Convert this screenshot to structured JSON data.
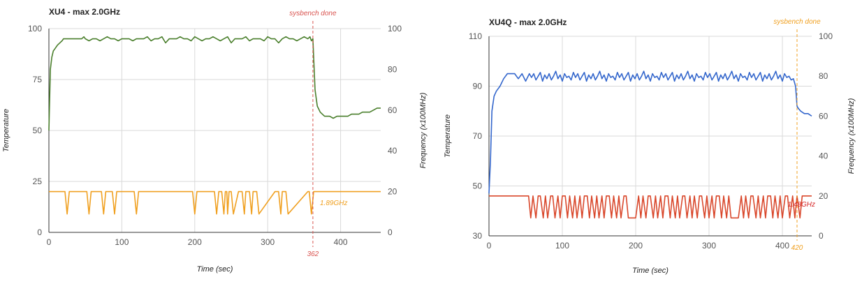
{
  "chart_data": [
    {
      "type": "line",
      "title": "XU4 - max 2.0GHz",
      "xlabel": "Time (sec)",
      "ylabel": "Temperature",
      "y2label": "Frequency (x100MHz)",
      "xlim": [
        0,
        455
      ],
      "ylim": [
        0,
        100
      ],
      "y2lim": [
        0,
        100
      ],
      "xticks": [
        0,
        100,
        200,
        300,
        400
      ],
      "yticks": [
        0,
        25,
        50,
        75,
        100
      ],
      "y2ticks": [
        0,
        20,
        40,
        60,
        80,
        100
      ],
      "grid": true,
      "marker": {
        "x": 362,
        "label": "sysbench done",
        "value_label": "362",
        "color": "#d9534f"
      },
      "freq_label": {
        "text": "1.89GHz",
        "color": "#f0a020"
      },
      "series": [
        {
          "axis": "left",
          "color": "#4a7f2c",
          "x": [
            0,
            2,
            4,
            6,
            8,
            10,
            12,
            15,
            18,
            20,
            25,
            30,
            40,
            45,
            48,
            50,
            55,
            60,
            65,
            70,
            75,
            80,
            85,
            90,
            95,
            100,
            105,
            110,
            115,
            120,
            125,
            130,
            135,
            140,
            145,
            150,
            155,
            160,
            165,
            170,
            175,
            180,
            185,
            190,
            195,
            200,
            205,
            210,
            215,
            220,
            225,
            230,
            235,
            240,
            245,
            250,
            255,
            260,
            265,
            270,
            275,
            280,
            285,
            290,
            295,
            300,
            305,
            310,
            315,
            320,
            325,
            330,
            335,
            340,
            345,
            350,
            355,
            358,
            360,
            362,
            365,
            368,
            372,
            378,
            385,
            390,
            395,
            400,
            405,
            410,
            415,
            420,
            425,
            430,
            435,
            440,
            445,
            450,
            455
          ],
          "values": [
            50,
            80,
            86,
            89,
            90,
            91,
            92,
            93,
            94,
            95,
            95,
            95,
            95,
            95,
            96,
            95,
            94,
            95,
            95,
            94,
            95,
            96,
            95,
            95,
            94,
            95,
            95,
            95,
            94,
            95,
            95,
            95,
            96,
            94,
            95,
            95,
            96,
            93,
            95,
            95,
            95,
            96,
            95,
            95,
            94,
            96,
            95,
            94,
            95,
            95,
            96,
            95,
            94,
            95,
            96,
            93,
            95,
            95,
            95,
            96,
            94,
            95,
            95,
            95,
            94,
            96,
            95,
            95,
            93,
            95,
            96,
            95,
            95,
            94,
            95,
            96,
            95,
            96,
            94,
            95,
            70,
            62,
            59,
            57,
            57,
            56,
            57,
            57,
            57,
            57,
            58,
            58,
            58,
            59,
            59,
            59,
            60,
            61,
            61
          ]
        },
        {
          "axis": "right",
          "color": "#f0a020",
          "x": [
            0,
            20,
            22,
            25,
            28,
            50,
            52,
            55,
            58,
            70,
            72,
            75,
            78,
            85,
            87,
            90,
            93,
            115,
            117,
            120,
            123,
            195,
            197,
            200,
            203,
            225,
            227,
            230,
            233,
            235,
            237,
            240,
            242,
            244,
            245,
            247,
            250,
            253,
            260,
            262,
            265,
            268,
            270,
            272,
            275,
            278,
            280,
            282,
            285,
            288,
            310,
            312,
            315,
            318,
            320,
            322,
            325,
            328,
            355,
            357,
            360,
            363,
            455
          ],
          "values": [
            20,
            20,
            20,
            9,
            20,
            20,
            20,
            9,
            20,
            20,
            20,
            9,
            20,
            20,
            20,
            9,
            20,
            20,
            20,
            9,
            20,
            20,
            20,
            9,
            20,
            20,
            20,
            9,
            20,
            20,
            20,
            9,
            20,
            20,
            9,
            20,
            20,
            9,
            20,
            20,
            20,
            9,
            20,
            20,
            20,
            9,
            20,
            20,
            20,
            9,
            20,
            20,
            20,
            9,
            20,
            20,
            20,
            9,
            20,
            20,
            9,
            20,
            20
          ]
        }
      ]
    },
    {
      "type": "line",
      "title": "XU4Q - max 2.0GHz",
      "xlabel": "Time (sec)",
      "ylabel": "Temperature",
      "y2label": "Frequency (x100MHz)",
      "xlim": [
        0,
        440
      ],
      "ylim": [
        30,
        110
      ],
      "y2lim": [
        0,
        100
      ],
      "xticks": [
        0,
        100,
        200,
        300,
        400
      ],
      "yticks": [
        30,
        50,
        70,
        90,
        110
      ],
      "y2ticks": [
        0,
        20,
        40,
        60,
        80,
        100
      ],
      "grid": true,
      "marker": {
        "x": 420,
        "label": "sysbench done",
        "value_label": "420",
        "color": "#f0a020"
      },
      "freq_label": {
        "text": "1.48GHz",
        "color": "#d62728"
      },
      "series": [
        {
          "axis": "left",
          "color": "#3366cc",
          "pattern": [
            93.5,
            95,
            92.5,
            94,
            95.5,
            92,
            94.5,
            93,
            95,
            92.5,
            94,
            96,
            93,
            94.5,
            92,
            95,
            93.5,
            94,
            92.5,
            95.5
          ],
          "x": [
            0,
            2,
            4,
            7,
            10,
            15,
            20,
            25,
            30,
            35,
            40,
            45,
            50,
            55
          ],
          "values": [
            47,
            60,
            80,
            86,
            88,
            90,
            93,
            95,
            95,
            95,
            93,
            95,
            92,
            95
          ],
          "x_after": [
            415,
            418,
            420,
            422,
            425,
            430,
            435,
            440
          ],
          "values_after": [
            93,
            90,
            82,
            81,
            80,
            79,
            79,
            78
          ]
        },
        {
          "axis": "right",
          "color": "#d9472b",
          "x": [
            0,
            50,
            54,
            57,
            60,
            64,
            67,
            70,
            74,
            77,
            80,
            84,
            87,
            90,
            94,
            97,
            100,
            104,
            107,
            110,
            114,
            117,
            120,
            124,
            127,
            130,
            134,
            137,
            140,
            144,
            147,
            150,
            154,
            157,
            160,
            164,
            167,
            170,
            174,
            177,
            180,
            184,
            187,
            190,
            200,
            204,
            207,
            210,
            214,
            217,
            220,
            224,
            227,
            230,
            234,
            237,
            240,
            244,
            247,
            250,
            254,
            257,
            260,
            264,
            267,
            270,
            274,
            277,
            280,
            284,
            287,
            290,
            294,
            297,
            300,
            304,
            307,
            310,
            314,
            317,
            320,
            324,
            327,
            330,
            340,
            344,
            347,
            350,
            354,
            357,
            360,
            364,
            367,
            370,
            374,
            377,
            380,
            384,
            387,
            390,
            394,
            397,
            400,
            404,
            407,
            410,
            414,
            417,
            420,
            424,
            427,
            440
          ],
          "values": [
            20,
            20,
            20,
            9,
            20,
            9,
            20,
            20,
            9,
            20,
            9,
            20,
            20,
            9,
            20,
            9,
            20,
            20,
            9,
            20,
            9,
            20,
            9,
            20,
            9,
            20,
            20,
            9,
            20,
            9,
            20,
            9,
            20,
            9,
            20,
            20,
            9,
            20,
            9,
            20,
            9,
            20,
            20,
            9,
            9,
            20,
            9,
            20,
            9,
            20,
            20,
            9,
            20,
            9,
            20,
            9,
            20,
            20,
            9,
            20,
            9,
            20,
            9,
            20,
            20,
            9,
            20,
            9,
            20,
            9,
            20,
            20,
            9,
            20,
            9,
            20,
            9,
            20,
            20,
            9,
            20,
            9,
            20,
            9,
            9,
            20,
            9,
            20,
            9,
            20,
            20,
            9,
            20,
            9,
            20,
            9,
            20,
            20,
            9,
            20,
            9,
            20,
            9,
            20,
            20,
            9,
            20,
            9,
            20,
            9,
            20,
            20
          ]
        }
      ]
    }
  ]
}
